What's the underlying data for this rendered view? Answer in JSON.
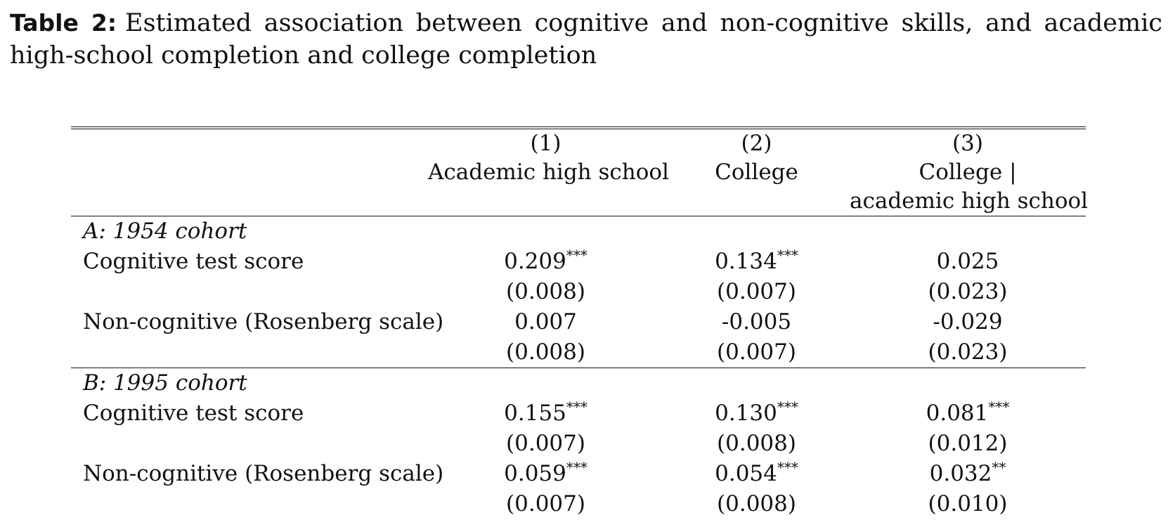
{
  "caption": {
    "label": "Table 2:",
    "text": "Estimated association between cognitive and non-cognitive skills, and academic high-school completion and college completion"
  },
  "table": {
    "headers": {
      "numbers": [
        "(1)",
        "(2)",
        "(3)"
      ],
      "names": [
        "Academic high school",
        "College",
        "College |"
      ],
      "names_line2": [
        "",
        "",
        "academic high school"
      ]
    },
    "panels": [
      {
        "title": "A: 1954 cohort",
        "rows": [
          {
            "label": "Cognitive test score",
            "coef": [
              "0.209",
              "0.134",
              "0.025"
            ],
            "stars": [
              "***",
              "***",
              ""
            ],
            "se": [
              "(0.008)",
              "(0.007)",
              "(0.023)"
            ]
          },
          {
            "label": "Non-cognitive (Rosenberg scale)",
            "coef": [
              "0.007",
              "-0.005",
              "-0.029"
            ],
            "stars": [
              "",
              "",
              ""
            ],
            "se": [
              "(0.008)",
              "(0.007)",
              "(0.023)"
            ]
          }
        ]
      },
      {
        "title": "B: 1995 cohort",
        "rows": [
          {
            "label": "Cognitive test score",
            "coef": [
              "0.155",
              "0.130",
              "0.081"
            ],
            "stars": [
              "***",
              "***",
              "***"
            ],
            "se": [
              "(0.007)",
              "(0.008)",
              "(0.012)"
            ]
          },
          {
            "label": "Non-cognitive (Rosenberg scale)",
            "coef": [
              "0.059",
              "0.054",
              "0.032"
            ],
            "stars": [
              "***",
              "***",
              "**"
            ],
            "se": [
              "(0.007)",
              "(0.008)",
              "(0.010)"
            ]
          }
        ]
      }
    ]
  }
}
